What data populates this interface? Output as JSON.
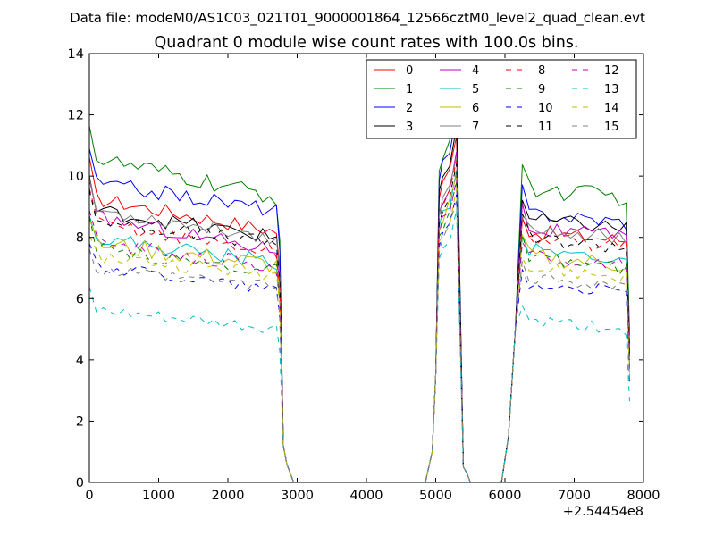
{
  "figure": {
    "suptitle": "Data file: modeM0/AS1C03_021T01_9000001864_12566cztM0_level2_quad_clean.evt",
    "title": "Quadrant 0 module wise count rates with 100.0s bins.",
    "x_offset_label": "+2.54454e8"
  },
  "chart_data": {
    "type": "line",
    "title": "Quadrant 0 module wise count rates with 100.0s bins.",
    "xlabel": "",
    "ylabel": "",
    "xlim": [
      0,
      8000
    ],
    "ylim": [
      0,
      14
    ],
    "x_offset": 254454000,
    "xticks": [
      0,
      1000,
      2000,
      3000,
      4000,
      5000,
      6000,
      7000,
      8000
    ],
    "yticks": [
      0,
      2,
      4,
      6,
      8,
      10,
      12,
      14
    ],
    "grid": false,
    "legend": {
      "placement": "top-right",
      "columns": 4
    },
    "series": [
      {
        "name": "0",
        "color": "#ff0000",
        "dash": "solid",
        "seg1": 9.3,
        "seg2": 8.2,
        "seg3": 8.2,
        "peak": 11.3,
        "noise": 0.25
      },
      {
        "name": "1",
        "color": "#008000",
        "dash": "solid",
        "seg1": 10.6,
        "seg2": 9.3,
        "seg3": 9.6,
        "peak": 12.4,
        "noise": 0.3
      },
      {
        "name": "2",
        "color": "#0000ff",
        "dash": "solid",
        "seg1": 9.8,
        "seg2": 8.9,
        "seg3": 8.8,
        "peak": 12.0,
        "noise": 0.25
      },
      {
        "name": "3",
        "color": "#000000",
        "dash": "solid",
        "seg1": 8.9,
        "seg2": 8.0,
        "seg3": 8.6,
        "peak": 11.6,
        "noise": 0.25
      },
      {
        "name": "4",
        "color": "#bf00bf",
        "dash": "solid",
        "seg1": 8.7,
        "seg2": 7.6,
        "seg3": 8.3,
        "peak": 10.8,
        "noise": 0.25
      },
      {
        "name": "5",
        "color": "#00bfbf",
        "dash": "solid",
        "seg1": 8.0,
        "seg2": 7.2,
        "seg3": 7.6,
        "peak": 10.2,
        "noise": 0.25
      },
      {
        "name": "6",
        "color": "#bfbf00",
        "dash": "solid",
        "seg1": 7.8,
        "seg2": 7.1,
        "seg3": 7.4,
        "peak": 10.0,
        "noise": 0.3
      },
      {
        "name": "7",
        "color": "#808080",
        "dash": "solid",
        "seg1": 8.9,
        "seg2": 8.0,
        "seg3": 8.3,
        "peak": 10.6,
        "noise": 0.25
      },
      {
        "name": "8",
        "color": "#ff0000",
        "dash": "dashed",
        "seg1": 8.5,
        "seg2": 7.5,
        "seg3": 8.0,
        "peak": 10.5,
        "noise": 0.25
      },
      {
        "name": "9",
        "color": "#008000",
        "dash": "dashed",
        "seg1": 7.6,
        "seg2": 6.9,
        "seg3": 7.3,
        "peak": 9.8,
        "noise": 0.25
      },
      {
        "name": "10",
        "color": "#0000ff",
        "dash": "dashed",
        "seg1": 7.1,
        "seg2": 6.3,
        "seg3": 6.5,
        "peak": 9.4,
        "noise": 0.2
      },
      {
        "name": "11",
        "color": "#000000",
        "dash": "dashed",
        "seg1": 8.6,
        "seg2": 7.8,
        "seg3": 8.0,
        "peak": 10.4,
        "noise": 0.25
      },
      {
        "name": "12",
        "color": "#bf00bf",
        "dash": "dashed",
        "seg1": 7.9,
        "seg2": 7.0,
        "seg3": 7.4,
        "peak": 9.9,
        "noise": 0.25
      },
      {
        "name": "13",
        "color": "#00bfbf",
        "dash": "dashed",
        "seg1": 5.6,
        "seg2": 5.0,
        "seg3": 5.3,
        "peak": 8.9,
        "noise": 0.2
      },
      {
        "name": "14",
        "color": "#bfbf00",
        "dash": "dashed",
        "seg1": 7.4,
        "seg2": 6.8,
        "seg3": 7.0,
        "peak": 9.6,
        "noise": 0.25
      },
      {
        "name": "15",
        "color": "#808080",
        "dash": "dashed",
        "seg1": 6.9,
        "seg2": 6.4,
        "seg3": 6.7,
        "peak": 9.2,
        "noise": 0.2
      }
    ]
  }
}
